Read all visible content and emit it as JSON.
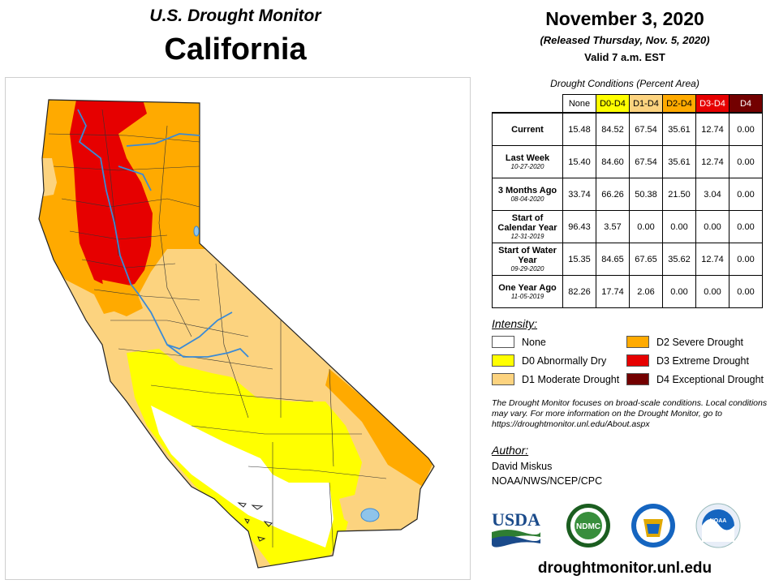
{
  "header": {
    "subtitle": "U.S. Drought Monitor",
    "state": "California",
    "date": "November 3, 2020",
    "released": "(Released Thursday, Nov. 5, 2020)",
    "valid": "Valid 7 a.m. EST"
  },
  "table": {
    "caption": "Drought Conditions (Percent Area)",
    "columns": [
      "None",
      "D0-D4",
      "D1-D4",
      "D2-D4",
      "D3-D4",
      "D4"
    ],
    "rows": [
      {
        "label": "Current",
        "date": "",
        "values": [
          "15.48",
          "84.52",
          "67.54",
          "35.61",
          "12.74",
          "0.00"
        ]
      },
      {
        "label": "Last Week",
        "date": "10-27-2020",
        "values": [
          "15.40",
          "84.60",
          "67.54",
          "35.61",
          "12.74",
          "0.00"
        ]
      },
      {
        "label": "3 Months Ago",
        "date": "08-04-2020",
        "values": [
          "33.74",
          "66.26",
          "50.38",
          "21.50",
          "3.04",
          "0.00"
        ]
      },
      {
        "label": "Start of Calendar Year",
        "date": "12-31-2019",
        "values": [
          "96.43",
          "3.57",
          "0.00",
          "0.00",
          "0.00",
          "0.00"
        ]
      },
      {
        "label": "Start of Water Year",
        "date": "09-29-2020",
        "values": [
          "15.35",
          "84.65",
          "67.65",
          "35.62",
          "12.74",
          "0.00"
        ]
      },
      {
        "label": "One Year Ago",
        "date": "11-05-2019",
        "values": [
          "82.26",
          "17.74",
          "2.06",
          "0.00",
          "0.00",
          "0.00"
        ]
      }
    ]
  },
  "legend": {
    "title": "Intensity:",
    "items": [
      {
        "label": "None",
        "color": "#ffffff"
      },
      {
        "label": "D0 Abnormally Dry",
        "color": "#ffff00"
      },
      {
        "label": "D1 Moderate Drought",
        "color": "#fcd37f"
      },
      {
        "label": "D2 Severe Drought",
        "color": "#ffaa00"
      },
      {
        "label": "D3 Extreme Drought",
        "color": "#e60000"
      },
      {
        "label": "D4 Exceptional Drought",
        "color": "#730000"
      }
    ]
  },
  "note": "The Drought Monitor focuses on broad-scale conditions. Local conditions may vary. For more information on the Drought Monitor, go to https://droughtmonitor.unl.edu/About.aspx",
  "author": {
    "title": "Author:",
    "name": "David Miskus",
    "org": "NOAA/NWS/NCEP/CPC"
  },
  "logos": {
    "usda": "USDA",
    "ndmc": "NDMC",
    "noaa": "NOAA"
  },
  "website": "droughtmonitor.unl.edu"
}
